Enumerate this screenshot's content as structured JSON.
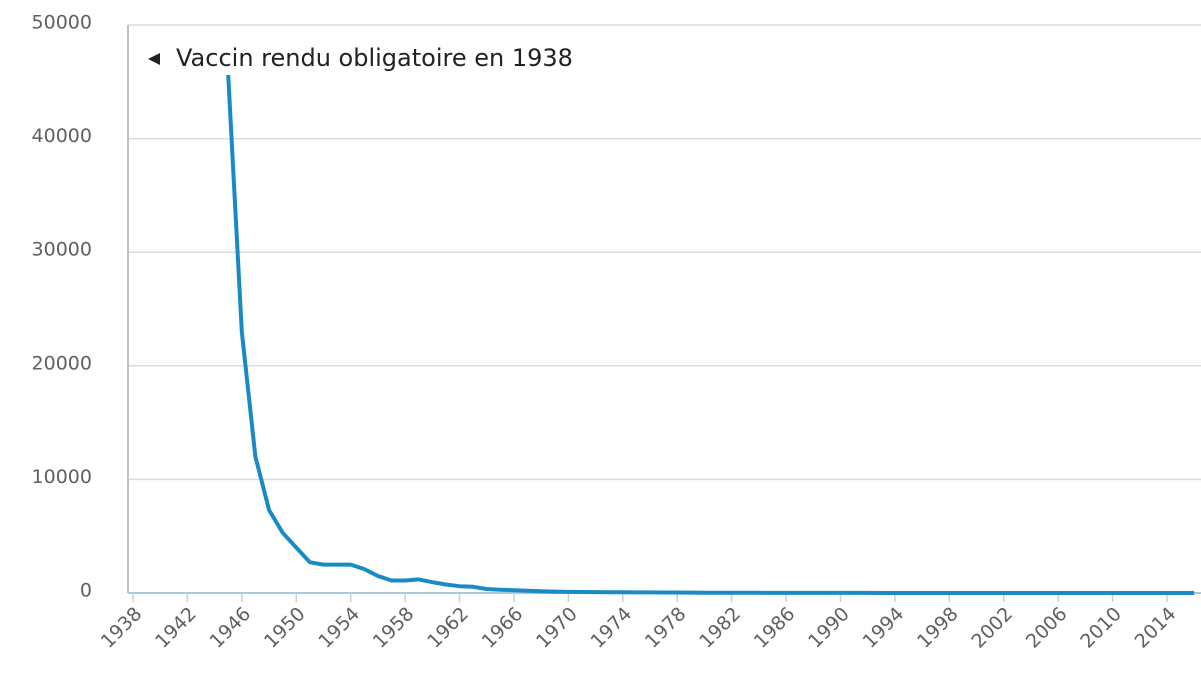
{
  "chart_data": {
    "type": "line",
    "annotation": "Vaccin rendu obligatoire en 1938",
    "x": [
      1945,
      1946,
      1947,
      1948,
      1949,
      1950,
      1951,
      1952,
      1953,
      1954,
      1955,
      1956,
      1957,
      1958,
      1959,
      1960,
      1961,
      1962,
      1963,
      1964,
      1965,
      1966,
      1967,
      1968,
      1969,
      1970,
      1971,
      1972,
      1973,
      1974,
      1975,
      1976,
      1977,
      1978,
      1979,
      1980,
      1981,
      1982,
      1983,
      1984,
      1985,
      1986,
      1987,
      1988,
      1989,
      1990,
      1991,
      1992,
      1993,
      1994,
      1995,
      1996,
      1997,
      1998,
      1999,
      2000,
      2001,
      2002,
      2003,
      2004,
      2005,
      2006,
      2007,
      2008,
      2009,
      2010,
      2011,
      2012,
      2013,
      2014,
      2015,
      2016
    ],
    "series": [
      {
        "color": "#1a8ac6",
        "values": [
          45600,
          23000,
          12000,
          7300,
          5300,
          4000,
          2700,
          2500,
          2500,
          2500,
          2100,
          1500,
          1100,
          1100,
          1200,
          950,
          750,
          600,
          550,
          350,
          280,
          250,
          200,
          150,
          120,
          100,
          90,
          80,
          70,
          60,
          55,
          50,
          45,
          40,
          35,
          30,
          25,
          20,
          18,
          15,
          12,
          10,
          9,
          8,
          7,
          6,
          5,
          5,
          4,
          4,
          3,
          3,
          2,
          2,
          2,
          1,
          1,
          1,
          1,
          1,
          1,
          0,
          0,
          0,
          0,
          0,
          0,
          0,
          0,
          0,
          0,
          0
        ]
      }
    ],
    "xlim": [
      1938,
      2016.5
    ],
    "xticks": [
      1938,
      1942,
      1946,
      1950,
      1954,
      1958,
      1962,
      1966,
      1970,
      1974,
      1978,
      1982,
      1986,
      1990,
      1994,
      1998,
      2002,
      2006,
      2010,
      2014
    ],
    "ylim": [
      0,
      50000
    ],
    "yticks": [
      0,
      10000,
      20000,
      30000,
      40000,
      50000
    ],
    "grid": true
  }
}
